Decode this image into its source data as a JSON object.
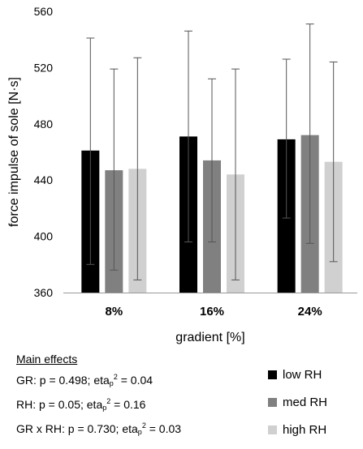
{
  "chart_data": {
    "type": "bar",
    "categories": [
      "8%",
      "16%",
      "24%"
    ],
    "series": [
      {
        "name": "low RH",
        "color": "#000000",
        "values": [
          461,
          471,
          469
        ],
        "err_low": [
          380,
          396,
          413
        ],
        "err_high": [
          541,
          546,
          526
        ]
      },
      {
        "name": "med RH",
        "color": "#808080",
        "values": [
          447,
          454,
          472
        ],
        "err_low": [
          376,
          396,
          395
        ],
        "err_high": [
          519,
          512,
          551
        ]
      },
      {
        "name": "high RH",
        "color": "#d0d0d0",
        "values": [
          448,
          444,
          453
        ],
        "err_low": [
          369,
          369,
          382
        ],
        "err_high": [
          527,
          519,
          524
        ]
      }
    ],
    "xlabel": "gradient [%]",
    "ylabel": "force impulse of sole [N·s]",
    "ylim": [
      360,
      560
    ],
    "yticks": [
      360,
      400,
      440,
      480,
      520,
      560
    ],
    "grid": false,
    "legend_position": "bottom-right"
  },
  "effects": {
    "heading": "Main effects",
    "rows": [
      {
        "prefix": "GR: p = 0.498;  eta",
        "sub": "p",
        "sup": "2",
        "suffix": " = 0.04"
      },
      {
        "prefix": "RH:  p = 0.05;  eta",
        "sub": "p",
        "sup": "2",
        "suffix": " = 0.16"
      },
      {
        "prefix": "GR x RH: p = 0.730;  eta",
        "sub": "p",
        "sup": "2",
        "suffix": " = 0.03"
      }
    ]
  }
}
